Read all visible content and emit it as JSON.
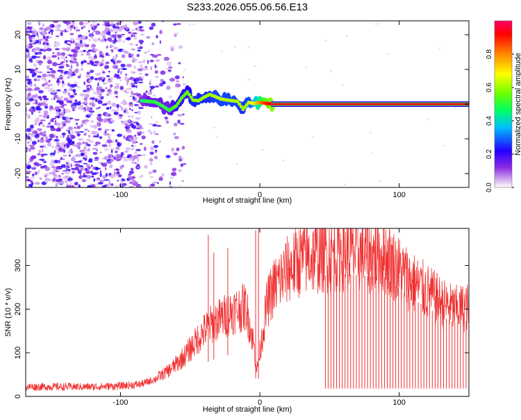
{
  "figure": {
    "title": "S233.2026.055.06.56.E13"
  },
  "chart_data": [
    {
      "type": "heatmap",
      "xlabel": "Height of straight line (km)",
      "ylabel": "Frequency (Hz)",
      "xlim": [
        -168,
        150
      ],
      "ylim": [
        -24,
        24
      ],
      "xticks": [
        -100,
        0,
        100
      ],
      "yticks": [
        -20,
        -10,
        0,
        10,
        20
      ],
      "colorbar": {
        "label": "Normalized spectral amplitude",
        "range": [
          0,
          1
        ],
        "ticks": [
          0.0,
          0.2,
          0.4,
          0.6,
          0.8
        ],
        "colors": [
          "#ffffff",
          "#d9b8f2",
          "#8a2be2",
          "#2200ff",
          "#00bfff",
          "#00ff66",
          "#66ff00",
          "#ffff00",
          "#ff8800",
          "#ff0000",
          "#ff0066"
        ]
      },
      "noise_region_x": [
        -168,
        -62
      ],
      "signal_track": [
        {
          "x": -85,
          "y": 1.0,
          "a": 0.45
        },
        {
          "x": -80,
          "y": 0.8,
          "a": 0.5
        },
        {
          "x": -75,
          "y": 0.6,
          "a": 0.5
        },
        {
          "x": -70,
          "y": -0.5,
          "a": 0.5
        },
        {
          "x": -65,
          "y": -1.8,
          "a": 0.5
        },
        {
          "x": -60,
          "y": -0.5,
          "a": 0.55
        },
        {
          "x": -56,
          "y": 1.8,
          "a": 0.55
        },
        {
          "x": -52,
          "y": 3.5,
          "a": 0.55
        },
        {
          "x": -48,
          "y": 1.2,
          "a": 0.6
        },
        {
          "x": -44,
          "y": 1.0,
          "a": 0.6
        },
        {
          "x": -40,
          "y": 2.0,
          "a": 0.6
        },
        {
          "x": -36,
          "y": 2.8,
          "a": 0.6
        },
        {
          "x": -32,
          "y": 2.2,
          "a": 0.62
        },
        {
          "x": -28,
          "y": 1.5,
          "a": 0.62
        },
        {
          "x": -24,
          "y": 1.2,
          "a": 0.62
        },
        {
          "x": -20,
          "y": 1.0,
          "a": 0.62
        },
        {
          "x": -16,
          "y": 0.8,
          "a": 0.62
        },
        {
          "x": -12,
          "y": -1.5,
          "a": 0.6
        },
        {
          "x": -8,
          "y": 0.5,
          "a": 0.62
        },
        {
          "x": -4,
          "y": 0.2,
          "a": 0.7
        },
        {
          "x": 0,
          "y": 0.5,
          "a": 0.8
        },
        {
          "x": 5,
          "y": 0.2,
          "a": 0.9
        },
        {
          "x": 10,
          "y": 0.0,
          "a": 0.95
        },
        {
          "x": 150,
          "y": 0.0,
          "a": 0.95
        }
      ]
    },
    {
      "type": "line",
      "xlabel": "Height of straight line (km)",
      "ylabel": "SNR (10 * v/v)",
      "xlim": [
        -168,
        150
      ],
      "ylim": [
        0,
        385
      ],
      "xticks": [
        -100,
        0,
        100
      ],
      "yticks": [
        0,
        100,
        200,
        300
      ],
      "series_color": "#f03030",
      "envelope": [
        {
          "x": -168,
          "y": 22
        },
        {
          "x": -120,
          "y": 22
        },
        {
          "x": -100,
          "y": 24
        },
        {
          "x": -85,
          "y": 28
        },
        {
          "x": -75,
          "y": 40
        },
        {
          "x": -65,
          "y": 60
        },
        {
          "x": -58,
          "y": 80
        },
        {
          "x": -52,
          "y": 100
        },
        {
          "x": -45,
          "y": 130
        },
        {
          "x": -40,
          "y": 150
        },
        {
          "x": -35,
          "y": 165
        },
        {
          "x": -30,
          "y": 175
        },
        {
          "x": -25,
          "y": 185
        },
        {
          "x": -20,
          "y": 195
        },
        {
          "x": -15,
          "y": 200
        },
        {
          "x": -10,
          "y": 205
        },
        {
          "x": -5,
          "y": 130
        },
        {
          "x": -2,
          "y": 60
        },
        {
          "x": 0,
          "y": 100
        },
        {
          "x": 5,
          "y": 210
        },
        {
          "x": 10,
          "y": 250
        },
        {
          "x": 20,
          "y": 290
        },
        {
          "x": 30,
          "y": 315
        },
        {
          "x": 45,
          "y": 325
        },
        {
          "x": 60,
          "y": 330
        },
        {
          "x": 75,
          "y": 325
        },
        {
          "x": 90,
          "y": 320
        },
        {
          "x": 100,
          "y": 290
        },
        {
          "x": 110,
          "y": 260
        },
        {
          "x": 120,
          "y": 240
        },
        {
          "x": 130,
          "y": 215
        },
        {
          "x": 140,
          "y": 200
        },
        {
          "x": 150,
          "y": 205
        }
      ],
      "spikes": [
        {
          "x": -37,
          "y": 370
        },
        {
          "x": -33,
          "y": 330
        },
        {
          "x": -23,
          "y": 340
        },
        {
          "x": -3,
          "y": 380
        },
        {
          "x": -1,
          "y": 395
        }
      ],
      "dropouts_x_range": [
        47,
        150
      ],
      "dropout_count": 52,
      "dropout_min": 18
    }
  ]
}
